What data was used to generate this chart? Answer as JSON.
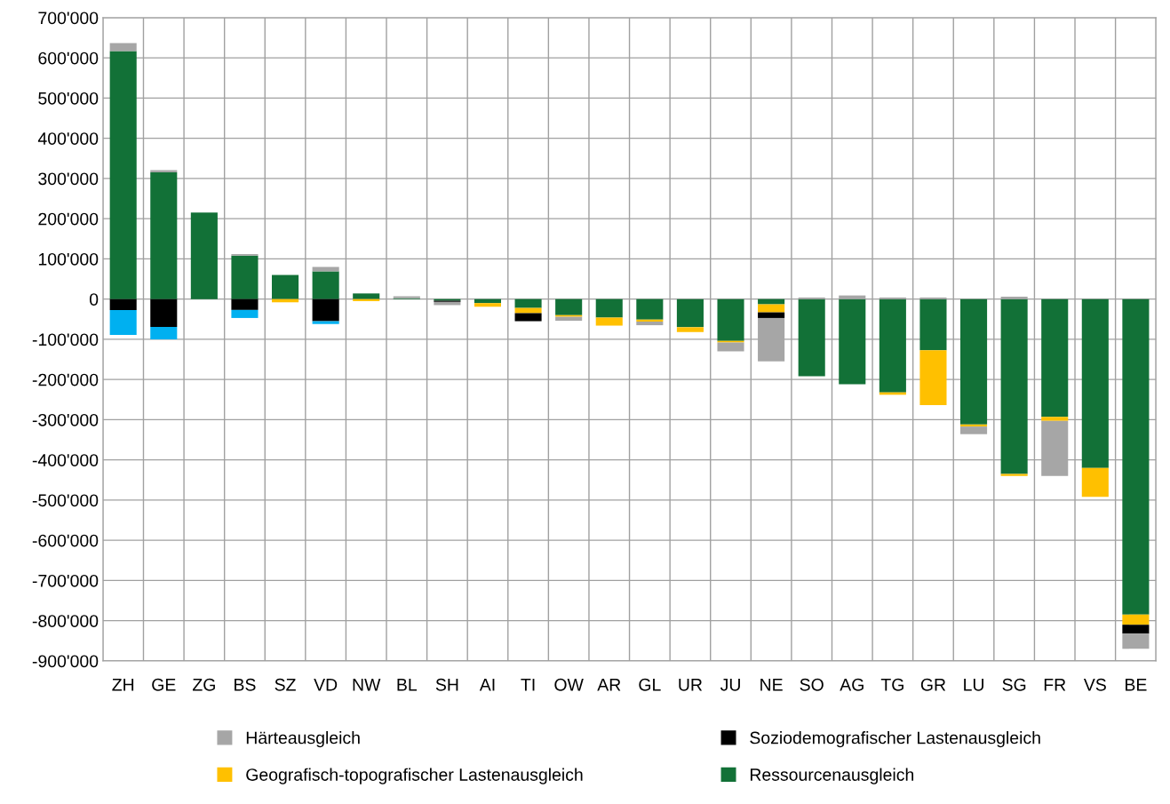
{
  "chart_data": {
    "type": "bar",
    "stacked": true,
    "categories": [
      "ZH",
      "GE",
      "ZG",
      "BS",
      "SZ",
      "VD",
      "NW",
      "BL",
      "SH",
      "AI",
      "TI",
      "OW",
      "AR",
      "GL",
      "UR",
      "JU",
      "NE",
      "SO",
      "AG",
      "TG",
      "GR",
      "LU",
      "SG",
      "FR",
      "VS",
      "BE"
    ],
    "series": [
      {
        "name": "Ressourcenausgleich",
        "color": "#127137",
        "values": [
          617000,
          315000,
          215000,
          108000,
          60000,
          69000,
          14000,
          2000,
          -4000,
          -10000,
          -22000,
          -40000,
          -46000,
          -51000,
          -70000,
          -104000,
          -13000,
          -192000,
          -212000,
          -232000,
          -127000,
          -312000,
          -435000,
          -293000,
          -420000,
          -785000
        ]
      },
      {
        "name": "Geografisch-topografischer Lastenausgleich",
        "color": "#ffc000",
        "values": [
          null,
          null,
          null,
          null,
          -8000,
          null,
          -5000,
          null,
          null,
          -9000,
          -13000,
          -4000,
          -20000,
          -5000,
          -12000,
          -4000,
          -20000,
          null,
          null,
          -6000,
          -137000,
          -5000,
          -5000,
          -10000,
          -72000,
          -25000
        ]
      },
      {
        "name": "Soziodemografischer Lastenausgleich",
        "color": "#000000",
        "values": [
          -27000,
          -69000,
          null,
          -27000,
          null,
          -55000,
          null,
          null,
          -3000,
          null,
          -20000,
          null,
          null,
          null,
          null,
          null,
          -14000,
          null,
          null,
          null,
          null,
          null,
          null,
          null,
          null,
          -22000
        ]
      },
      {
        "name": "Härteausgleich",
        "color": "#a6a6a6",
        "values": [
          20000,
          6000,
          null,
          4000,
          null,
          11000,
          null,
          5000,
          -8000,
          null,
          null,
          -10000,
          null,
          -9000,
          null,
          -22000,
          -108000,
          4000,
          9000,
          4000,
          4000,
          -19000,
          6000,
          -137000,
          null,
          -38000
        ]
      },
      {
        "color": "#00b0f0",
        "values": [
          -62000,
          -31000,
          null,
          -20000,
          null,
          -7000,
          null,
          null,
          null,
          null,
          null,
          null,
          null,
          null,
          null,
          null,
          null,
          null,
          null,
          null,
          null,
          null,
          null,
          null,
          null,
          null
        ]
      }
    ],
    "ylim": [
      -900000,
      700000
    ],
    "yticks": [
      {
        "value": -900000,
        "label": "-900'000"
      },
      {
        "value": -800000,
        "label": "-800'000"
      },
      {
        "value": -700000,
        "label": "-700'000"
      },
      {
        "value": -600000,
        "label": "-600'000"
      },
      {
        "value": -500000,
        "label": "-500'000"
      },
      {
        "value": -400000,
        "label": "-400'000"
      },
      {
        "value": -300000,
        "label": "-300'000"
      },
      {
        "value": -200000,
        "label": "-200'000"
      },
      {
        "value": -100000,
        "label": "-100'000"
      },
      {
        "value": 0,
        "label": "0"
      },
      {
        "value": 100000,
        "label": "100'000"
      },
      {
        "value": 200000,
        "label": "200'000"
      },
      {
        "value": 300000,
        "label": "300'000"
      },
      {
        "value": 400000,
        "label": "400'000"
      },
      {
        "value": 500000,
        "label": "500'000"
      },
      {
        "value": 600000,
        "label": "600'000"
      },
      {
        "value": 700000,
        "label": "700'000"
      }
    ],
    "grid": true,
    "legend": "bottom"
  }
}
